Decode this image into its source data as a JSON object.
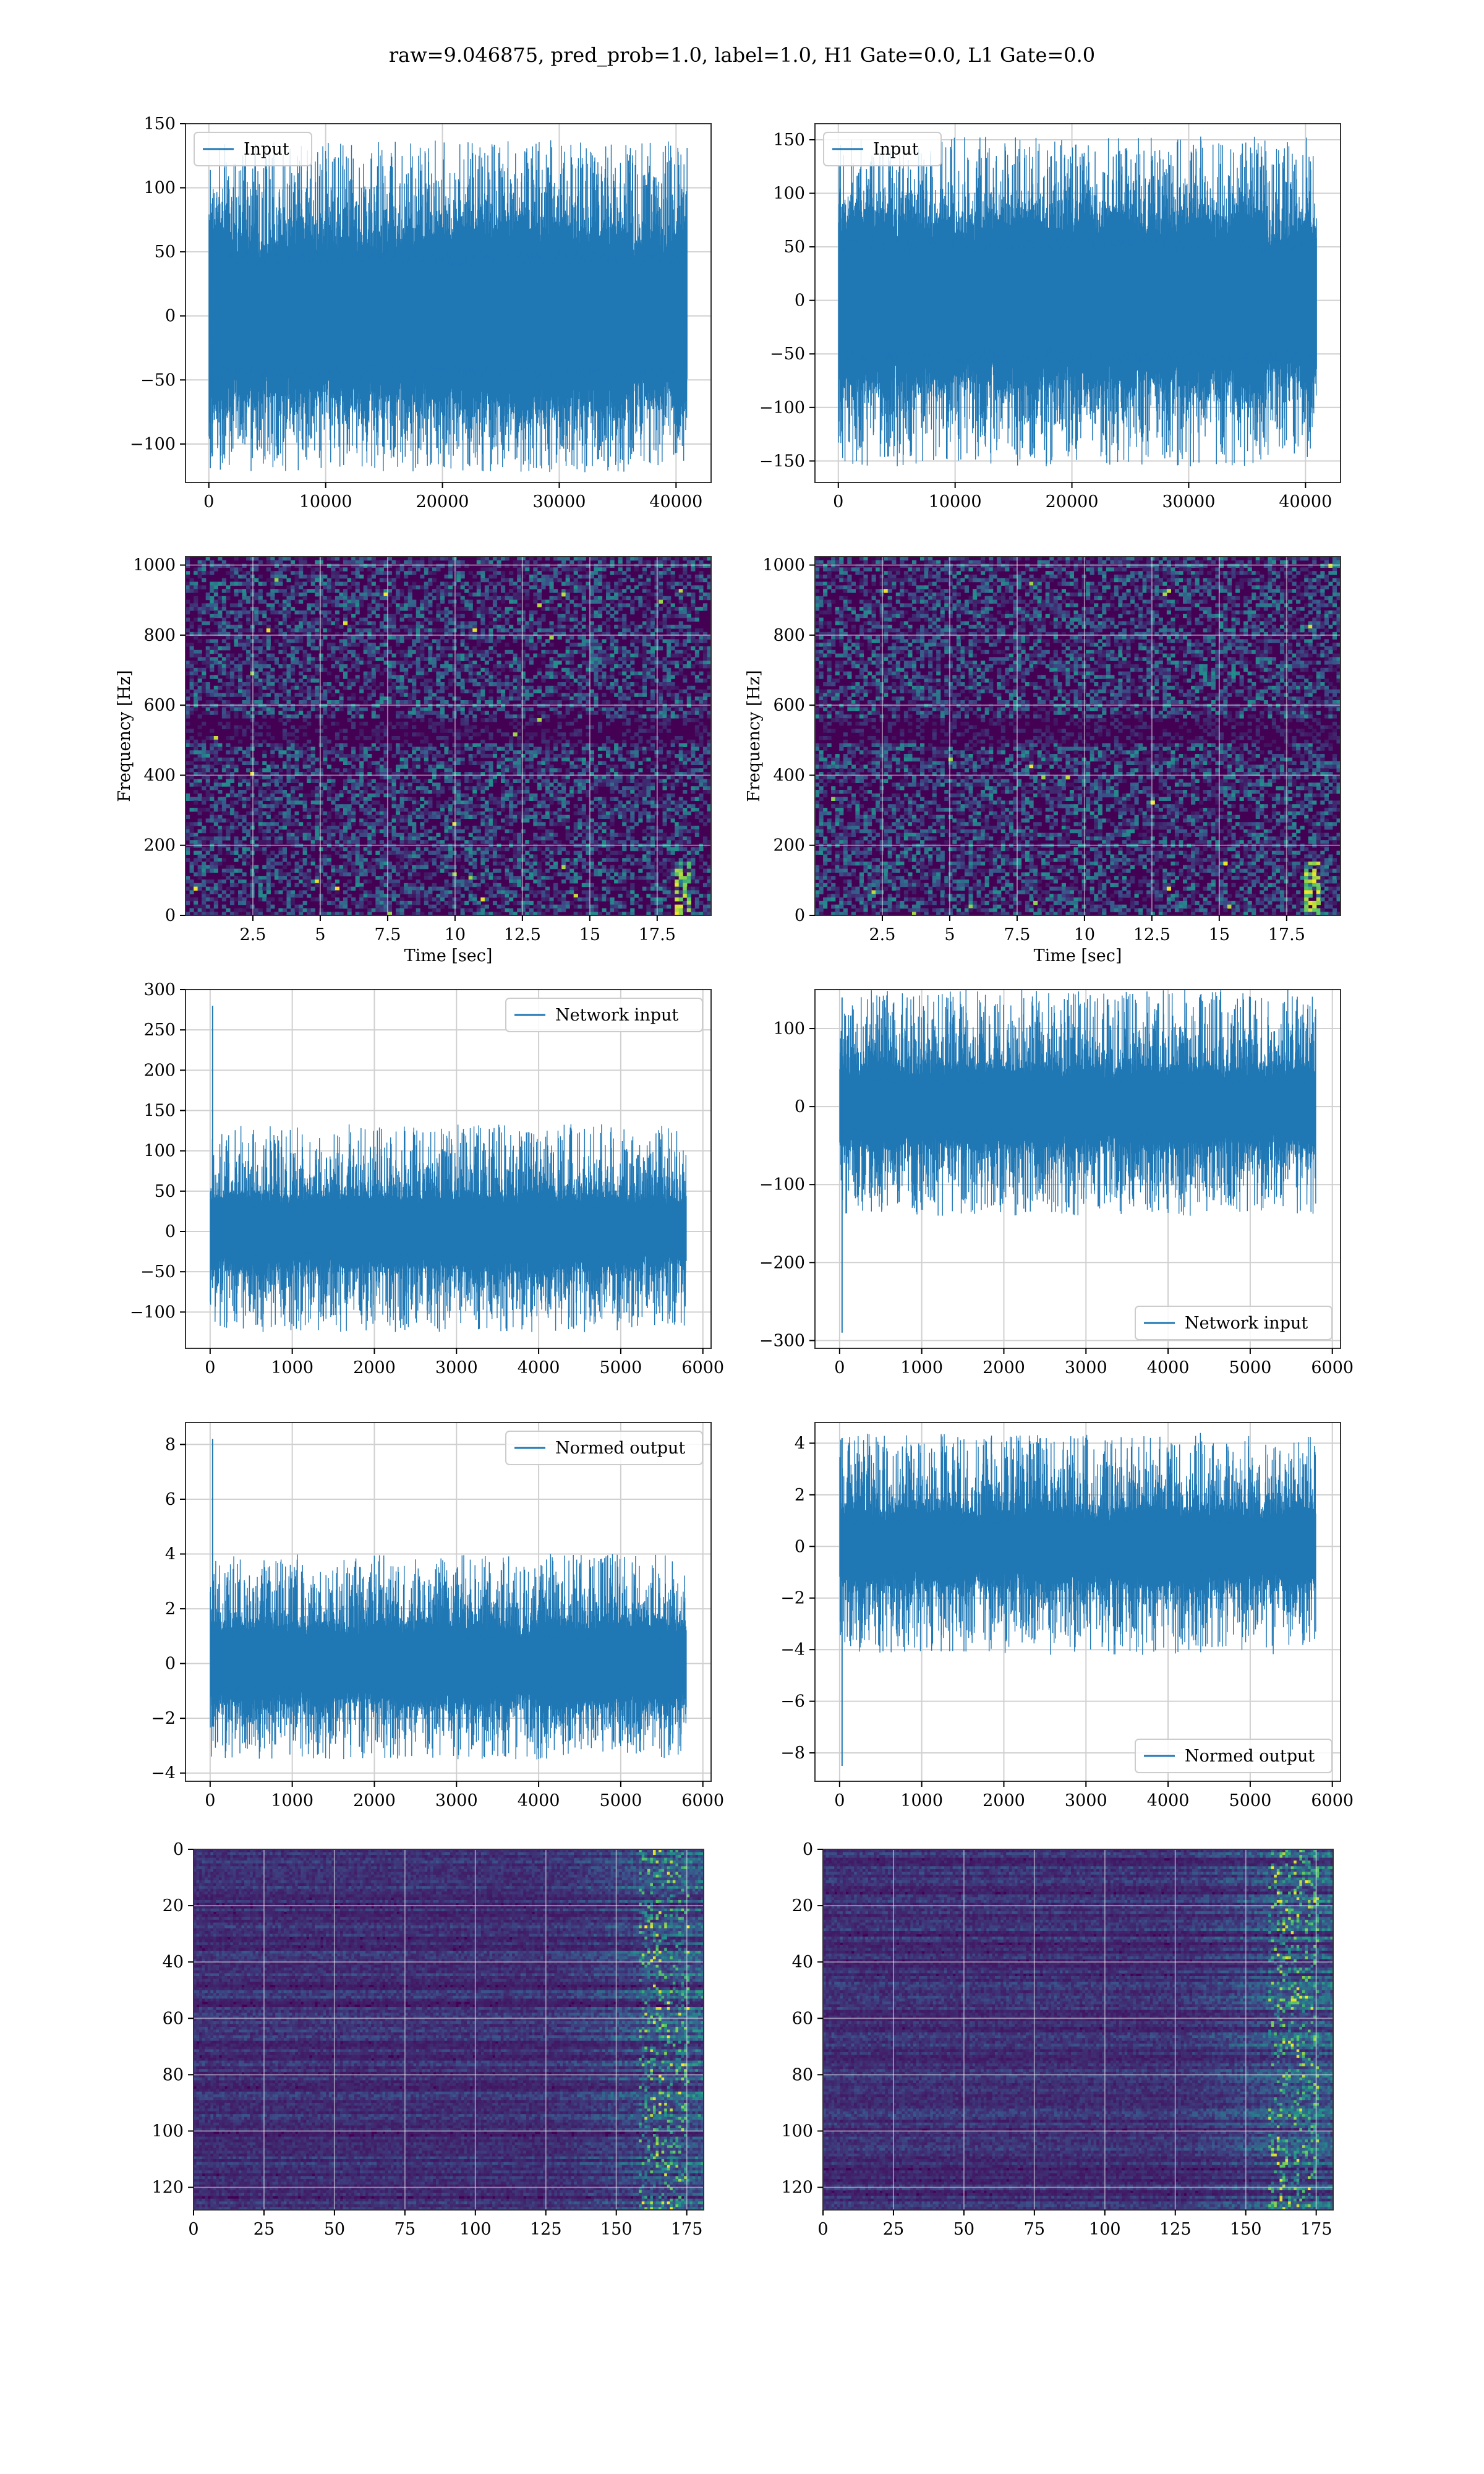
{
  "figure": {
    "title": "raw=9.046875, pred_prob=1.0, label=1.0, H1 Gate=0.0, L1 Gate=0.0"
  },
  "colors": {
    "line": "#1f77b4",
    "grid": "#d0d0d0",
    "spine": "#333333",
    "viridis_dark": "#440154"
  },
  "chart_data": [
    {
      "id": "input-h1",
      "type": "line",
      "legend": "Input",
      "legend_loc": "upper-left",
      "grid": true,
      "xlim": [
        -2000,
        43000
      ],
      "ylim": [
        -130,
        150
      ],
      "xticks": [
        0,
        10000,
        20000,
        30000,
        40000
      ],
      "yticks": [
        -100,
        -50,
        0,
        50,
        100,
        150
      ],
      "signal": {
        "n_samples": 40960,
        "x_start": 0,
        "x_end": 40960,
        "core": 62,
        "peak_max": 137,
        "peak_min": -122
      }
    },
    {
      "id": "input-l1",
      "type": "line",
      "legend": "Input",
      "legend_loc": "upper-left",
      "grid": true,
      "xlim": [
        -2000,
        43000
      ],
      "ylim": [
        -170,
        165
      ],
      "xticks": [
        0,
        10000,
        20000,
        30000,
        40000
      ],
      "yticks": [
        -150,
        -100,
        -50,
        0,
        50,
        100,
        150
      ],
      "signal": {
        "n_samples": 40960,
        "x_start": 0,
        "x_end": 40960,
        "core": 72,
        "peak_max": 153,
        "peak_min": -155
      }
    },
    {
      "id": "spectrogram-h1",
      "type": "heatmap",
      "grid": true,
      "xlabel": "Time [sec]",
      "ylabel": "Frequency [Hz]",
      "xlim": [
        0,
        19.5
      ],
      "ylim": [
        0,
        1024
      ],
      "xticks": [
        2.5,
        5.0,
        7.5,
        10.0,
        12.5,
        15.0,
        17.5
      ],
      "yticks": [
        0,
        200,
        400,
        600,
        800,
        1000
      ]
    },
    {
      "id": "spectrogram-l1",
      "type": "heatmap",
      "grid": true,
      "xlabel": "Time [sec]",
      "ylabel": "Frequency [Hz]",
      "xlim": [
        0,
        19.5
      ],
      "ylim": [
        0,
        1024
      ],
      "xticks": [
        2.5,
        5.0,
        7.5,
        10.0,
        12.5,
        15.0,
        17.5
      ],
      "yticks": [
        0,
        200,
        400,
        600,
        800,
        1000
      ]
    },
    {
      "id": "network-input-h1",
      "type": "line",
      "legend": "Network input",
      "legend_loc": "upper-right",
      "grid": true,
      "xlim": [
        -300,
        6100
      ],
      "ylim": [
        -145,
        300
      ],
      "xticks": [
        0,
        1000,
        2000,
        3000,
        4000,
        5000,
        6000
      ],
      "yticks": [
        -100,
        -50,
        0,
        50,
        100,
        150,
        200,
        250,
        300
      ],
      "signal": {
        "n_samples": 5800,
        "x_start": 0,
        "x_end": 5800,
        "core": 42,
        "peak_max": 133,
        "peak_min": -125,
        "spike_max": 280,
        "spike_min": -70
      }
    },
    {
      "id": "network-input-l1",
      "type": "line",
      "legend": "Network input",
      "legend_loc": "lower-right",
      "grid": true,
      "xlim": [
        -300,
        6100
      ],
      "ylim": [
        -310,
        150
      ],
      "xticks": [
        0,
        1000,
        2000,
        3000,
        4000,
        5000,
        6000
      ],
      "yticks": [
        -300,
        -200,
        -100,
        0,
        100
      ],
      "signal": {
        "n_samples": 5800,
        "x_start": 0,
        "x_end": 5800,
        "core": 45,
        "peak_max": 150,
        "peak_min": -140,
        "spike_max": 140,
        "spike_min": -290
      }
    },
    {
      "id": "normed-output-h1",
      "type": "line",
      "legend": "Normed output",
      "legend_loc": "upper-right",
      "grid": true,
      "xlim": [
        -300,
        6100
      ],
      "ylim": [
        -4.3,
        8.8
      ],
      "xticks": [
        0,
        1000,
        2000,
        3000,
        4000,
        5000,
        6000
      ],
      "yticks": [
        -4,
        -2,
        0,
        2,
        4,
        6,
        8
      ],
      "signal": {
        "n_samples": 5800,
        "x_start": 0,
        "x_end": 5800,
        "core": 1.3,
        "peak_max": 4.0,
        "peak_min": -3.5,
        "spike_max": 8.2,
        "spike_min": -2.3
      }
    },
    {
      "id": "normed-output-l1",
      "type": "line",
      "legend": "Normed output",
      "legend_loc": "lower-right",
      "grid": true,
      "xlim": [
        -300,
        6100
      ],
      "ylim": [
        -9.1,
        4.8
      ],
      "xticks": [
        0,
        1000,
        2000,
        3000,
        4000,
        5000,
        6000
      ],
      "yticks": [
        -8,
        -6,
        -4,
        -2,
        0,
        2,
        4
      ],
      "signal": {
        "n_samples": 5800,
        "x_start": 0,
        "x_end": 5800,
        "core": 1.3,
        "peak_max": 4.4,
        "peak_min": -4.2,
        "spike_max": 4.2,
        "spike_min": -8.5
      }
    },
    {
      "id": "features-h1",
      "type": "heatmap",
      "grid": true,
      "xlim": [
        0,
        181
      ],
      "ylim": [
        128,
        0
      ],
      "xticks": [
        0,
        25,
        50,
        75,
        100,
        125,
        150,
        175
      ],
      "yticks": [
        0,
        20,
        40,
        60,
        80,
        100,
        120
      ]
    },
    {
      "id": "features-l1",
      "type": "heatmap",
      "grid": true,
      "xlim": [
        0,
        181
      ],
      "ylim": [
        128,
        0
      ],
      "xticks": [
        0,
        25,
        50,
        75,
        100,
        125,
        150,
        175
      ],
      "yticks": [
        0,
        20,
        40,
        60,
        80,
        100,
        120
      ]
    }
  ]
}
